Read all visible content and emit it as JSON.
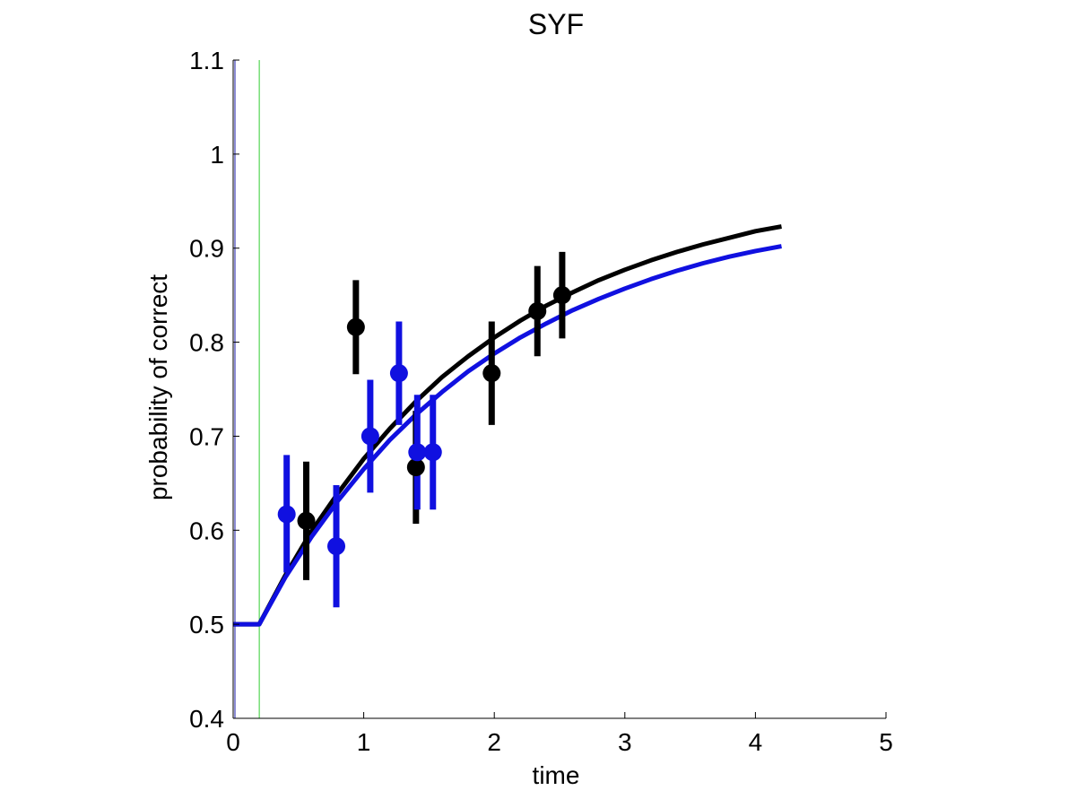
{
  "chart_data": {
    "type": "scatter",
    "title": "SYF",
    "xlabel": "time",
    "ylabel": "probability of correct",
    "xlim": [
      0,
      5
    ],
    "ylim": [
      0.4,
      1.1
    ],
    "xticks": [
      "0",
      "1",
      "2",
      "3",
      "4",
      "5"
    ],
    "yticks": [
      "0.4",
      "0.5",
      "0.6",
      "0.7",
      "0.8",
      "0.9",
      "1",
      "1.1"
    ],
    "grid": false,
    "legend": "none",
    "reference_lines": [
      {
        "x": 0.0,
        "color": "#1a1aa8"
      },
      {
        "x": 0.2,
        "color": "#33cc33"
      }
    ],
    "series": [
      {
        "color": "#000000",
        "points": [
          {
            "x": 0.56,
            "y": 0.61,
            "low": 0.547,
            "high": 0.673
          },
          {
            "x": 0.94,
            "y": 0.816,
            "low": 0.766,
            "high": 0.866
          },
          {
            "x": 1.4,
            "y": 0.667,
            "low": 0.607,
            "high": 0.727
          },
          {
            "x": 1.98,
            "y": 0.767,
            "low": 0.712,
            "high": 0.822
          },
          {
            "x": 2.33,
            "y": 0.833,
            "low": 0.785,
            "high": 0.881
          },
          {
            "x": 2.52,
            "y": 0.85,
            "low": 0.804,
            "high": 0.896
          }
        ],
        "fit": {
          "x": [
            0,
            0.2,
            0.4,
            0.6,
            0.8,
            1.0,
            1.2,
            1.4,
            1.6,
            1.8,
            2.0,
            2.2,
            2.4,
            2.6,
            2.8,
            3.0,
            3.2,
            3.4,
            3.6,
            3.8,
            4.0,
            4.2
          ],
          "y": [
            0.5,
            0.5,
            0.552,
            0.599,
            0.639,
            0.676,
            0.708,
            0.737,
            0.763,
            0.785,
            0.805,
            0.823,
            0.839,
            0.853,
            0.866,
            0.877,
            0.887,
            0.896,
            0.904,
            0.911,
            0.918,
            0.923
          ]
        }
      },
      {
        "color": "#1010e0",
        "points": [
          {
            "x": 0.41,
            "y": 0.617,
            "low": 0.555,
            "high": 0.68
          },
          {
            "x": 0.79,
            "y": 0.583,
            "low": 0.518,
            "high": 0.648
          },
          {
            "x": 1.05,
            "y": 0.7,
            "low": 0.64,
            "high": 0.76
          },
          {
            "x": 1.27,
            "y": 0.767,
            "low": 0.712,
            "high": 0.822
          },
          {
            "x": 1.41,
            "y": 0.683,
            "low": 0.622,
            "high": 0.744
          },
          {
            "x": 1.53,
            "y": 0.683,
            "low": 0.622,
            "high": 0.744
          }
        ],
        "fit": {
          "x": [
            0,
            0.2,
            0.4,
            0.6,
            0.8,
            1.0,
            1.2,
            1.4,
            1.6,
            1.8,
            2.0,
            2.2,
            2.4,
            2.6,
            2.8,
            3.0,
            3.2,
            3.4,
            3.6,
            3.8,
            4.0,
            4.2
          ],
          "y": [
            0.5,
            0.5,
            0.55,
            0.593,
            0.631,
            0.665,
            0.696,
            0.723,
            0.747,
            0.769,
            0.788,
            0.805,
            0.82,
            0.834,
            0.846,
            0.857,
            0.867,
            0.876,
            0.884,
            0.891,
            0.897,
            0.902
          ]
        }
      }
    ]
  }
}
